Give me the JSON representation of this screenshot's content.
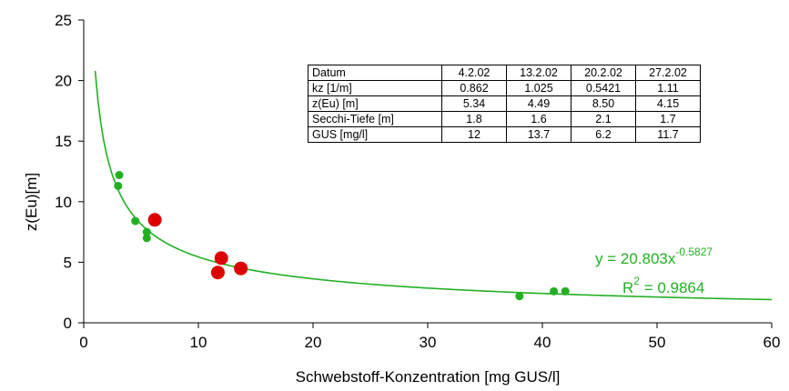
{
  "chart_data": {
    "type": "scatter",
    "title": "",
    "xlabel": "Schwebstoff-Konzentration  [mg  GUS/l]",
    "ylabel": "z(Eu)[m]",
    "xlim": [
      0,
      60
    ],
    "ylim": [
      0,
      25
    ],
    "x_ticks": [
      "0",
      "10",
      "20",
      "30",
      "40",
      "50",
      "60"
    ],
    "y_ticks": [
      "0",
      "5",
      "10",
      "15",
      "20",
      "25"
    ],
    "grid": false,
    "series": [
      {
        "kind": "scatter",
        "color": "#22b022",
        "points": [
          {
            "x": 3.0,
            "y": 11.3
          },
          {
            "x": 3.1,
            "y": 12.2
          },
          {
            "x": 4.5,
            "y": 8.4
          },
          {
            "x": 5.5,
            "y": 7.5
          },
          {
            "x": 5.5,
            "y": 7.0
          },
          {
            "x": 38.0,
            "y": 2.2
          },
          {
            "x": 41.0,
            "y": 2.6
          },
          {
            "x": 42.0,
            "y": 2.6
          }
        ]
      },
      {
        "kind": "scatter",
        "color": "#dd0000",
        "points": [
          {
            "x": 6.2,
            "y": 8.5
          },
          {
            "x": 12.0,
            "y": 5.34
          },
          {
            "x": 11.7,
            "y": 4.15
          },
          {
            "x": 13.7,
            "y": 4.49
          }
        ]
      },
      {
        "kind": "power-fit",
        "color": "#22b022",
        "coefficient": 20.803,
        "exponent": -0.5827,
        "x_range": [
          1.0,
          60
        ]
      }
    ],
    "annotations": {
      "equation_main": "y  =  20.803x",
      "equation_exp": "-0.5827",
      "r2_main": "R",
      "r2_sup": "2",
      "r2_rest": "  =  0.9864"
    },
    "table": {
      "header": [
        "Datum",
        "4.2.02",
        "13.2.02",
        "20.2.02",
        "27.2.02"
      ],
      "rows": [
        [
          "kz   [1/m]",
          "0.862",
          "1.025",
          "0.5421",
          "1.11"
        ],
        [
          "z(Eu)   [m]",
          "5.34",
          "4.49",
          "8.50",
          "4.15"
        ],
        [
          "Secchi-Tiefe   [m]",
          "1.8",
          "1.6",
          "2.1",
          "1.7"
        ],
        [
          "GUS   [mg/l]",
          "12",
          "13.7",
          "6.2",
          "11.7"
        ]
      ]
    }
  }
}
